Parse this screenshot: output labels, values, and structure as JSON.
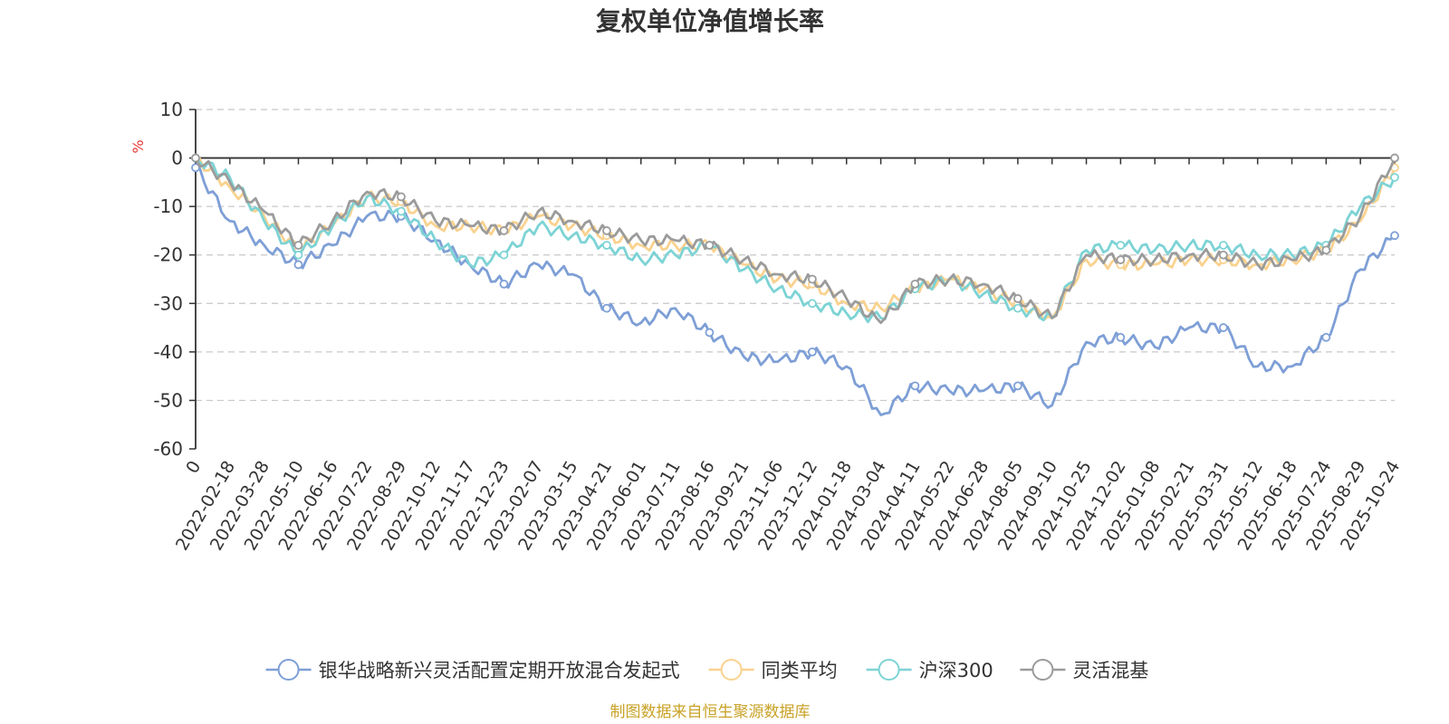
{
  "chart_data": {
    "type": "line",
    "title": "复权单位净值增长率",
    "ylabel": "%",
    "ylim": [
      -60,
      10
    ],
    "yticks": [
      10,
      0,
      -10,
      -20,
      -30,
      -40,
      -50,
      -60
    ],
    "grid": true,
    "legend_position": "bottom",
    "source": "制图数据来自恒生聚源数据库",
    "x_labels": [
      "0",
      "2022-02-18",
      "2022-03-28",
      "2022-05-10",
      "2022-06-16",
      "2022-07-22",
      "2022-08-29",
      "2022-10-12",
      "2022-11-17",
      "2022-12-23",
      "2023-02-07",
      "2023-03-15",
      "2023-04-21",
      "2023-06-01",
      "2023-07-11",
      "2023-08-16",
      "2023-09-21",
      "2023-11-06",
      "2023-12-12",
      "2024-01-18",
      "2024-03-04",
      "2024-04-11",
      "2024-05-22",
      "2024-06-28",
      "2024-08-05",
      "2024-09-10",
      "2024-10-25",
      "2024-12-02",
      "2025-01-08",
      "2025-02-21",
      "2025-03-31",
      "2025-05-12",
      "2025-06-18",
      "2025-07-24",
      "2025-08-29",
      "2025-10-24"
    ],
    "series": [
      {
        "name": "银华战略新兴灵活配置定期开放混合发起式",
        "color": "#7e9fd6",
        "values": [
          -2,
          -13,
          -18,
          -22,
          -18,
          -12,
          -12,
          -17,
          -22,
          -26,
          -22,
          -24,
          -31,
          -34,
          -31,
          -36,
          -41,
          -42,
          -40,
          -43,
          -53,
          -47,
          -48,
          -48,
          -47,
          -51,
          -38,
          -37,
          -39,
          -35,
          -35,
          -43,
          -43,
          -37,
          -23,
          -16
        ]
      },
      {
        "name": "同类平均",
        "color": "#f9d28f",
        "values": [
          0,
          -6,
          -12,
          -19,
          -14,
          -8,
          -9,
          -14,
          -14,
          -15,
          -12,
          -14,
          -16,
          -18,
          -18,
          -18,
          -22,
          -25,
          -26,
          -30,
          -31,
          -27,
          -25,
          -27,
          -30,
          -33,
          -21,
          -22,
          -22,
          -21,
          -21,
          -22,
          -21,
          -19,
          -13,
          -2
        ]
      },
      {
        "name": "沪深300",
        "color": "#7dd3d5",
        "values": [
          0,
          -4,
          -13,
          -20,
          -14,
          -8,
          -11,
          -17,
          -22,
          -20,
          -14,
          -16,
          -18,
          -21,
          -20,
          -18,
          -23,
          -27,
          -30,
          -32,
          -33,
          -27,
          -25,
          -28,
          -31,
          -33,
          -19,
          -18,
          -19,
          -18,
          -18,
          -20,
          -20,
          -18,
          -10,
          -4
        ]
      },
      {
        "name": "灵活混基",
        "color": "#9b9b9b",
        "values": [
          0,
          -5,
          -11,
          -18,
          -13,
          -7,
          -8,
          -13,
          -14,
          -15,
          -11,
          -13,
          -15,
          -17,
          -17,
          -18,
          -21,
          -24,
          -25,
          -29,
          -34,
          -26,
          -25,
          -26,
          -29,
          -33,
          -20,
          -21,
          -21,
          -20,
          -20,
          -22,
          -21,
          -19,
          -12,
          0
        ]
      }
    ]
  }
}
